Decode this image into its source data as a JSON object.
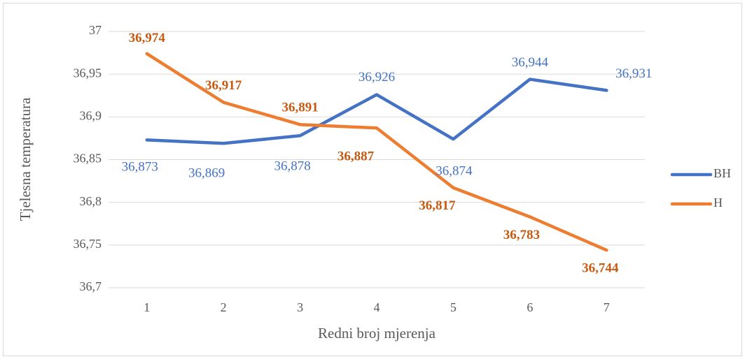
{
  "chart_data": {
    "type": "line",
    "x_label": "Redni broj mjerenja",
    "y_label": "Tjelesna temperatura",
    "categories": [
      "1",
      "2",
      "3",
      "4",
      "5",
      "6",
      "7"
    ],
    "ylim": [
      36.7,
      37
    ],
    "yticks": [
      {
        "value": 36.7,
        "label": "36,7"
      },
      {
        "value": 36.75,
        "label": "36,75"
      },
      {
        "value": 36.8,
        "label": "36,8"
      },
      {
        "value": 36.85,
        "label": "36,85"
      },
      {
        "value": 36.9,
        "label": "36,9"
      },
      {
        "value": 36.95,
        "label": "36,95"
      },
      37
    ],
    "grid": true,
    "legend": "right",
    "series": [
      {
        "name": "BH",
        "color": "#4472c4",
        "label_color": "#4472c4",
        "values": [
          36.873,
          36.869,
          36.878,
          36.926,
          36.874,
          36.944,
          36.931
        ],
        "value_labels": [
          "36,873",
          "36,869",
          "36,878",
          "36,926",
          "36,874",
          "36,944",
          "36,931"
        ]
      },
      {
        "name": "H",
        "color": "#ed7d31",
        "label_color": "#c55a11",
        "values": [
          36.974,
          36.917,
          36.891,
          36.887,
          36.817,
          36.783,
          36.744
        ],
        "value_labels": [
          "36,974",
          "36,917",
          "36,891",
          "36,887",
          "36,817",
          "36,783",
          "36,744"
        ]
      }
    ]
  }
}
